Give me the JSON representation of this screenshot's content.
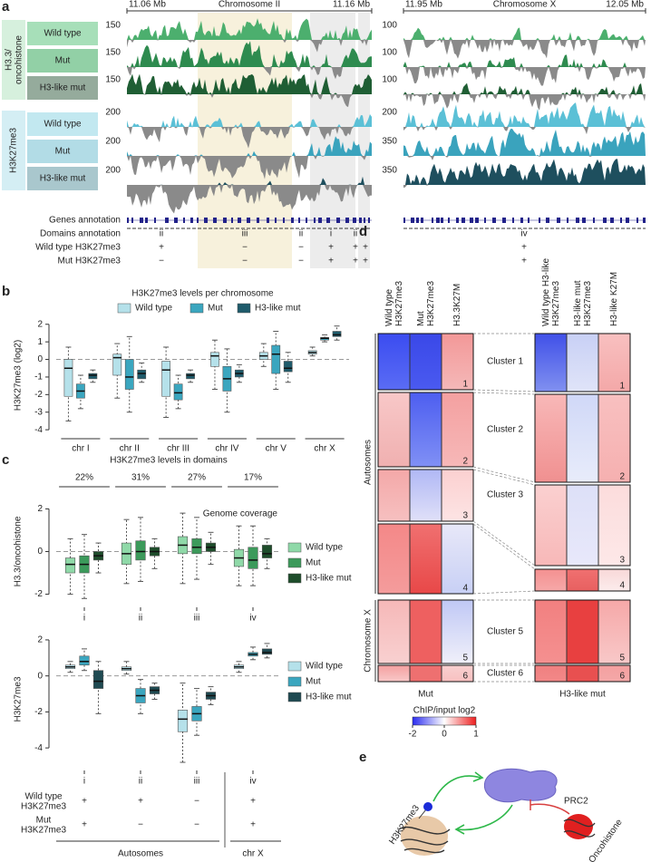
{
  "panel_labels": [
    "a",
    "b",
    "c",
    "d",
    "e"
  ],
  "panel_a": {
    "group_labels": [
      "H3.3/ oncohistone",
      "H3K27me3"
    ],
    "sample_labels": [
      [
        "Wild type",
        "Mut",
        "H3-like mut"
      ],
      [
        "Wild type",
        "Mut",
        "H3-like mut"
      ]
    ],
    "left_region": {
      "start": "11.06 Mb",
      "name": "Chromosome II",
      "end": "11.16 Mb",
      "track_scales": [
        150,
        150,
        150,
        200,
        200,
        200
      ]
    },
    "right_region": {
      "start": "11.95 Mb",
      "name": "Chromosome X",
      "end": "12.05 Mb",
      "track_scales": [
        100,
        100,
        100,
        200,
        350,
        350
      ]
    },
    "row_labels": [
      "Genes annotation",
      "Domains annotation",
      "Wild type H3K27me3",
      "Mut H3K27me3"
    ],
    "left_domains": [
      {
        "domain": "ii",
        "wild_type": "+",
        "mut": "−"
      },
      {
        "domain": "iii",
        "wild_type": "−",
        "mut": "−"
      },
      {
        "domain": "ii",
        "wild_type": "−",
        "mut": "−"
      },
      {
        "domain": "i",
        "wild_type": "+",
        "mut": "+"
      },
      {
        "domain": "ii",
        "wild_type": "+",
        "mut": "+"
      },
      {
        "domain": "i",
        "wild_type": "+",
        "mut": "+"
      }
    ],
    "right_domains": [
      {
        "domain": "iv",
        "wild_type": "+",
        "mut": "+"
      }
    ]
  },
  "chart_data": [
    {
      "type": "box",
      "title": "H3K27me3 levels per chromosome",
      "y_label": "H3K27me3 (log2)",
      "categories": [
        "chr I",
        "chr II",
        "chr III",
        "chr IV",
        "chr V",
        "chr X"
      ],
      "ylim": [
        -4.2,
        2.4
      ],
      "yticks": [
        -4,
        -3,
        -2,
        -1,
        0,
        1,
        2
      ],
      "legend": "top",
      "series": [
        {
          "name": "Wild type",
          "color": "#b5e1ea",
          "values": [
            [
              -3.5,
              -2.1,
              -0.5,
              0,
              0.7
            ],
            [
              -2.2,
              -0.9,
              0.1,
              0.3,
              0.9
            ],
            [
              -3.3,
              -2.1,
              -0.6,
              -0.1,
              0.7
            ],
            [
              -1.7,
              -0.4,
              0.2,
              0.4,
              1.1
            ],
            [
              -0.4,
              0,
              0.2,
              0.4,
              0.9
            ],
            [
              0.2,
              0.3,
              0.4,
              0.5,
              0.7
            ]
          ]
        },
        {
          "name": "Mut",
          "color": "#3ba6bf",
          "values": [
            [
              -2.8,
              -2.2,
              -1.8,
              -1.4,
              -0.9
            ],
            [
              -3,
              -1.7,
              -1,
              0,
              1.3
            ],
            [
              -2.8,
              -2.3,
              -1.9,
              -1.4,
              -0.9
            ],
            [
              -3,
              -1.8,
              -1.1,
              -0.4,
              0.6
            ],
            [
              -1.7,
              -0.8,
              0.3,
              0.8,
              1.6
            ],
            [
              1,
              1.1,
              1.2,
              1.25,
              1.4
            ]
          ]
        },
        {
          "name": "H3-like mut",
          "color": "#1f5b6b",
          "values": [
            [
              -1.3,
              -1.1,
              -0.9,
              -0.8,
              -0.6
            ],
            [
              -1.3,
              -1.1,
              -0.8,
              -0.6,
              -0.2
            ],
            [
              -1.3,
              -1.1,
              -0.9,
              -0.8,
              -0.6
            ],
            [
              -1.3,
              -1,
              -0.8,
              -0.6,
              -0.3
            ],
            [
              -1.3,
              -0.7,
              -0.5,
              -0.1,
              0.4
            ],
            [
              1.1,
              1.3,
              1.4,
              1.6,
              1.9
            ]
          ]
        }
      ]
    },
    {
      "type": "box",
      "title": "H3K27me3 levels in domains",
      "y_label": "H3.3/oncohistone",
      "coverage": [
        "22%",
        "31%",
        "27%",
        "17%"
      ],
      "annotation": "Genome coverage",
      "categories": [
        "i",
        "ii",
        "iii",
        "iv"
      ],
      "ylim": [
        -2.4,
        2.4
      ],
      "yticks": [
        -2,
        0,
        2
      ],
      "legend": "right",
      "series": [
        {
          "name": "Wild type",
          "color": "#8fd9a8",
          "values": [
            [
              -2,
              -1,
              -0.6,
              -0.3,
              0.6
            ],
            [
              -1.5,
              -0.6,
              -0.1,
              0.4,
              1.5
            ],
            [
              -1.5,
              -0.1,
              0.3,
              0.7,
              1.8
            ],
            [
              -1.6,
              -0.7,
              -0.3,
              0.1,
              1.2
            ]
          ]
        },
        {
          "name": "Mut",
          "color": "#3c9a5b",
          "values": [
            [
              -2.2,
              -1,
              -0.6,
              -0.2,
              0.8
            ],
            [
              -1.4,
              -0.4,
              0,
              0.5,
              1.6
            ],
            [
              -1.3,
              -0.1,
              0.2,
              0.6,
              1.6
            ],
            [
              -1.6,
              -0.8,
              -0.4,
              0.2,
              1.2
            ]
          ]
        },
        {
          "name": "H3-like mut",
          "color": "#1e4d2b",
          "values": [
            [
              -1,
              -0.4,
              -0.2,
              0,
              0.4
            ],
            [
              -0.8,
              -0.2,
              0,
              0.2,
              0.6
            ],
            [
              -0.6,
              0,
              0.2,
              0.4,
              0.9
            ],
            [
              -0.8,
              -0.3,
              -0.1,
              0.3,
              0.6
            ]
          ]
        }
      ]
    },
    {
      "type": "box",
      "y_label": "H3K27me3",
      "categories": [
        "i",
        "ii",
        "iii",
        "iv"
      ],
      "ylim": [
        -5,
        2.4
      ],
      "yticks": [
        -4,
        -2,
        0,
        2
      ],
      "legend": "right",
      "rows": [
        {
          "label": "Wild type H3K27me3",
          "marks": [
            "+",
            "+",
            "−",
            "+"
          ]
        },
        {
          "label": "Mut H3K27me3",
          "marks": [
            "+",
            "−",
            "−",
            "+"
          ]
        }
      ],
      "groups": [
        "Autosomes",
        "chr X"
      ],
      "series": [
        {
          "name": "Wild type",
          "color": "#b5e1ea",
          "values": [
            [
              0.2,
              0.4,
              0.5,
              0.6,
              0.8
            ],
            [
              0.1,
              0.3,
              0.4,
              0.5,
              0.8
            ],
            [
              -4.8,
              -3.1,
              -2.4,
              -1.9,
              -0.4
            ],
            [
              0.2,
              0.4,
              0.5,
              0.6,
              0.8
            ]
          ]
        },
        {
          "name": "Mut",
          "color": "#3ba6bf",
          "values": [
            [
              0.3,
              0.6,
              0.8,
              1.1,
              1.5
            ],
            [
              -2.1,
              -1.5,
              -1.1,
              -0.7,
              -0.2
            ],
            [
              -3.3,
              -2.5,
              -2.1,
              -1.7,
              -0.7
            ],
            [
              0.9,
              1.1,
              1.2,
              1.3,
              1.6
            ]
          ]
        },
        {
          "name": "H3-like mut",
          "color": "#1f4a52",
          "values": [
            [
              -2.1,
              -0.7,
              -0.3,
              0.3,
              0.8
            ],
            [
              -1.3,
              -1,
              -0.8,
              -0.6,
              -0.4
            ],
            [
              -1.6,
              -1.3,
              -1.1,
              -0.9,
              -0.6
            ],
            [
              1,
              1.2,
              1.3,
              1.5,
              1.8
            ]
          ]
        }
      ]
    }
  ],
  "panel_d": {
    "column_headers_left": [
      "Wild type H3K27me3",
      "Mut H3K27me3",
      "H3.3K27M"
    ],
    "column_headers_right": [
      "Wild type H3-like H3K27me3",
      "H3-like mut H3K27me3",
      "H3-like K27M"
    ],
    "cluster_labels": [
      "Cluster 1",
      "Cluster 2",
      "Cluster 3",
      "Cluster 5",
      "Cluster 6"
    ],
    "cluster_numbers": [
      1,
      2,
      3,
      4,
      5,
      6
    ],
    "side_labels": [
      "Autosomes",
      "Chromosome X"
    ],
    "bottom_labels": [
      "Mut",
      "H3-like mut"
    ],
    "colorbar": {
      "label": "ChIP/input log2",
      "lim": [
        -2,
        1
      ],
      "ticks": [
        -2,
        0,
        1
      ]
    }
  },
  "panel_e": {
    "labels": [
      "PRC2",
      "H3K27me3",
      "Oncohistone"
    ]
  }
}
